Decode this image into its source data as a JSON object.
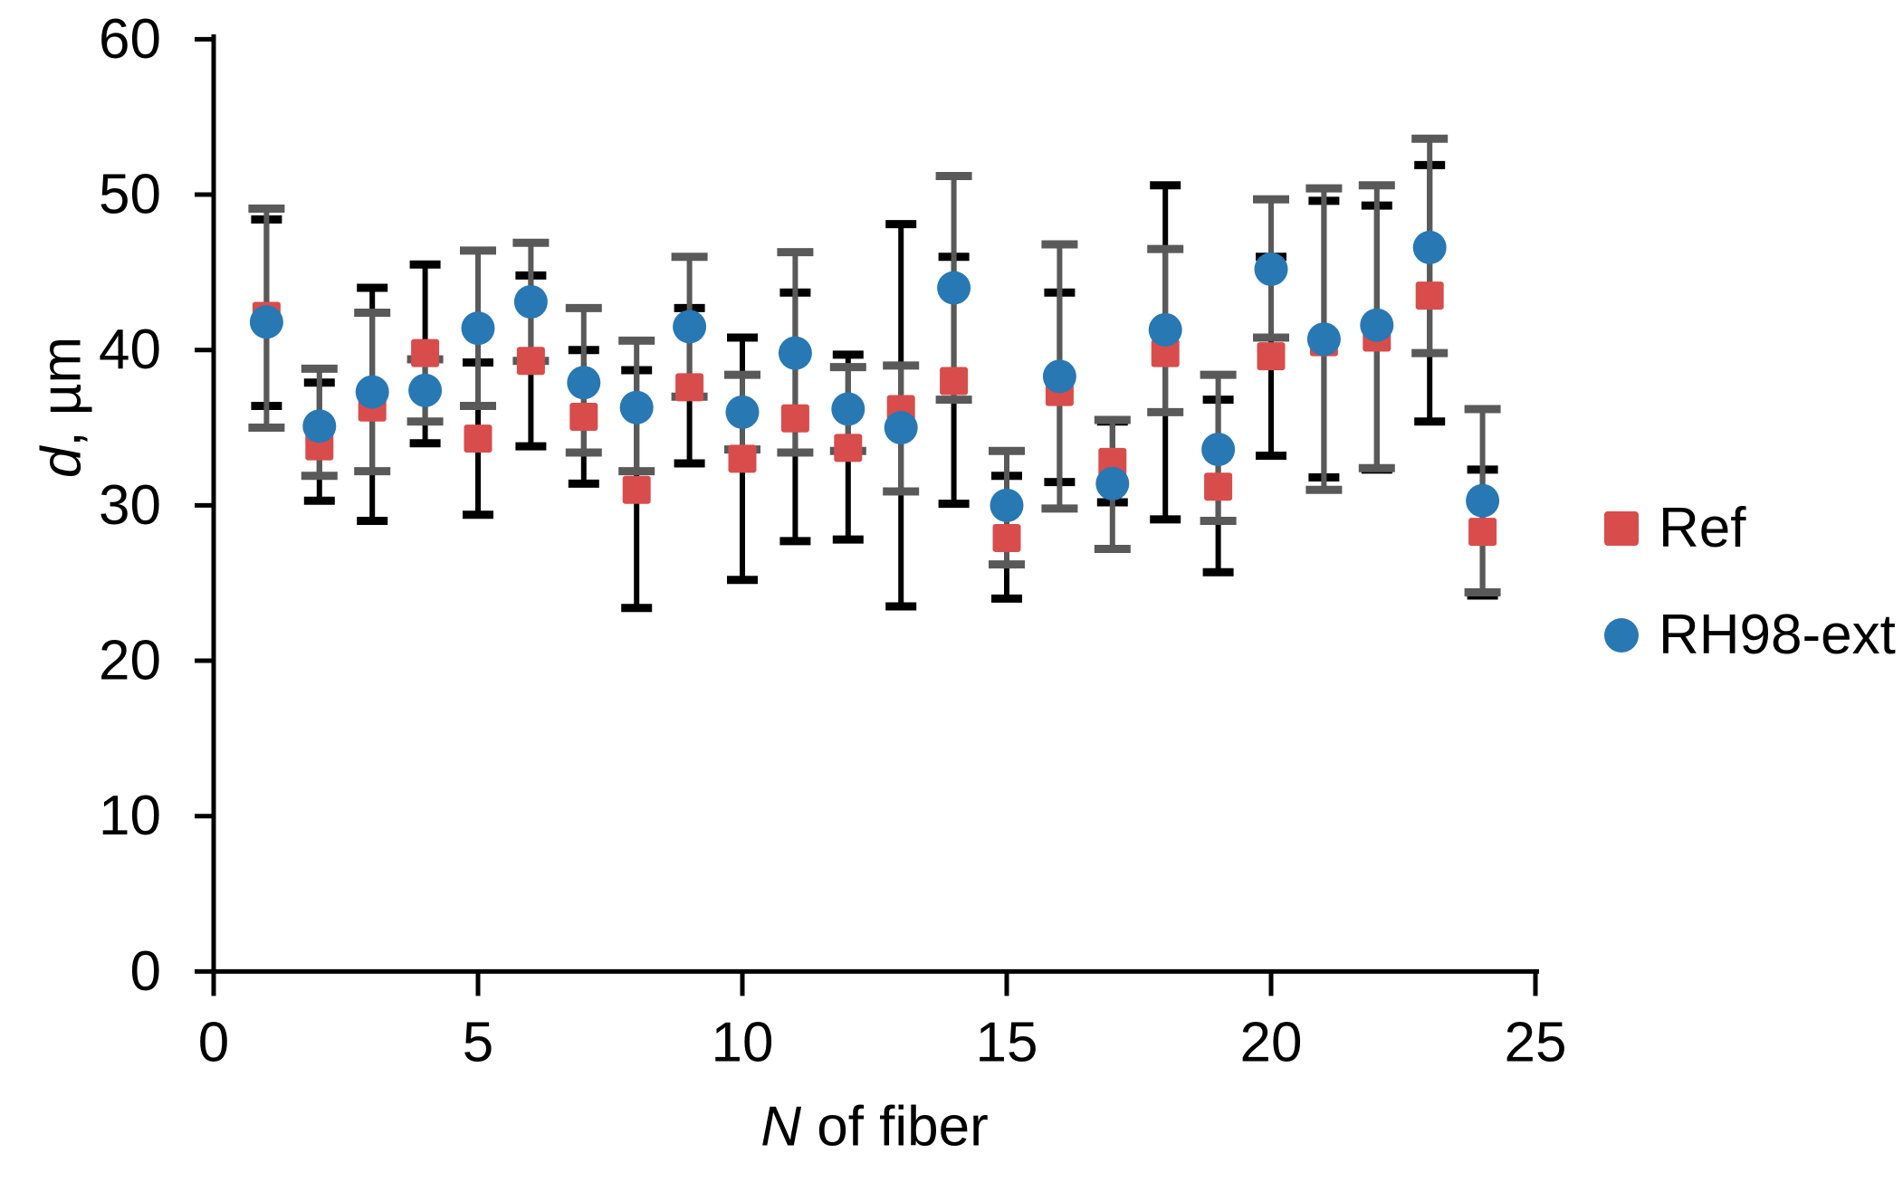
{
  "colors": {
    "ref": "#d94c4c",
    "rh98": "#2878b4",
    "ref_error": "#000000",
    "rh98_error": "#595959",
    "axis": "#000000",
    "background": "#ffffff"
  },
  "y_axis": {
    "title_italic": "d",
    "title_rest": ", µm",
    "tick_labels": [
      "0",
      "10",
      "20",
      "30",
      "40",
      "50",
      "60"
    ],
    "range": [
      0,
      60
    ]
  },
  "x_axis": {
    "title_italic": "N",
    "title_rest": " of fiber",
    "tick_labels": [
      "0",
      "5",
      "10",
      "15",
      "20",
      "25"
    ],
    "range": [
      0,
      25
    ]
  },
  "legend": [
    {
      "label": "Ref",
      "marker": "square",
      "color": "#d94c4c"
    },
    {
      "label": "RH98-ext",
      "marker": "circle",
      "color": "#2878b4"
    }
  ],
  "chart_data": {
    "type": "scatter",
    "title": "",
    "xlabel": "N of fiber",
    "ylabel": "d, µm",
    "xlim": [
      0,
      25
    ],
    "ylim": [
      0,
      60
    ],
    "x_ticks": [
      0,
      5,
      10,
      15,
      20,
      25
    ],
    "y_ticks": [
      0,
      10,
      20,
      30,
      40,
      50,
      60
    ],
    "grid": false,
    "legend_position": "right",
    "x": [
      1,
      2,
      3,
      4,
      5,
      6,
      7,
      8,
      9,
      10,
      11,
      12,
      13,
      14,
      15,
      16,
      17,
      18,
      19,
      20,
      21,
      22,
      23,
      24
    ],
    "series": [
      {
        "name": "Ref",
        "marker": "square",
        "color": "#d94c4c",
        "error_color": "#000000",
        "values": [
          42.2,
          33.8,
          36.3,
          39.8,
          34.3,
          39.3,
          35.7,
          31.0,
          37.6,
          33.0,
          35.6,
          33.7,
          36.2,
          38.0,
          27.9,
          37.3,
          32.8,
          39.8,
          31.2,
          39.6,
          40.5,
          40.8,
          43.5,
          28.3
        ],
        "error_low": [
          36.4,
          30.3,
          29.0,
          34.0,
          29.4,
          33.8,
          31.4,
          23.4,
          32.7,
          25.2,
          27.7,
          27.8,
          23.5,
          30.1,
          24.0,
          31.5,
          30.2,
          29.1,
          25.7,
          33.2,
          31.8,
          32.3,
          35.4,
          24.2
        ],
        "error_high": [
          48.4,
          37.9,
          44.0,
          45.5,
          39.2,
          44.8,
          40.0,
          38.7,
          42.7,
          40.8,
          43.7,
          39.7,
          48.1,
          46.0,
          31.9,
          43.7,
          35.4,
          50.6,
          36.8,
          46.0,
          49.6,
          49.3,
          51.9,
          32.3
        ]
      },
      {
        "name": "RH98-ext",
        "marker": "circle",
        "color": "#2878b4",
        "error_color": "#595959",
        "values": [
          41.8,
          35.1,
          37.3,
          37.4,
          41.4,
          43.1,
          37.9,
          36.3,
          41.5,
          36.0,
          39.8,
          36.2,
          35.0,
          44.0,
          30.0,
          38.3,
          31.4,
          41.3,
          33.6,
          45.2,
          40.7,
          41.6,
          46.6,
          30.3
        ],
        "error_low": [
          35.0,
          31.9,
          32.2,
          35.4,
          36.4,
          39.3,
          33.4,
          32.2,
          37.0,
          33.6,
          33.4,
          33.5,
          30.9,
          36.8,
          26.2,
          29.8,
          27.2,
          36.0,
          29.0,
          40.8,
          31.0,
          32.4,
          39.8,
          24.4
        ],
        "error_high": [
          49.1,
          38.8,
          42.4,
          39.4,
          46.4,
          46.9,
          42.7,
          40.6,
          46.0,
          38.4,
          46.3,
          38.9,
          39.0,
          51.2,
          33.5,
          46.8,
          35.5,
          46.5,
          38.4,
          49.7,
          50.4,
          50.6,
          53.6,
          36.2
        ]
      }
    ]
  }
}
